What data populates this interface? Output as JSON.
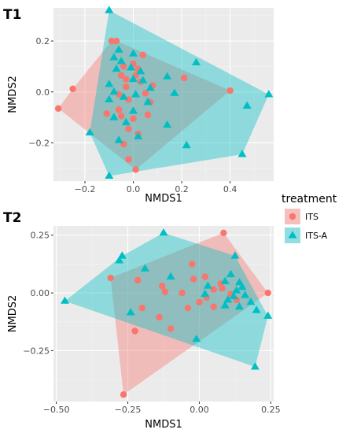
{
  "colors": {
    "ITS": "#F8766D",
    "ITS-A": "#00BFC4",
    "panel_bg": "#EBEBEB",
    "grid_major": "#FFFFFF",
    "grid_minor": "#F4F4F4"
  },
  "legend": {
    "title": "treatment",
    "entries": [
      {
        "label": "ITS",
        "shape": "circle",
        "color": "#F8766D"
      },
      {
        "label": "ITS-A",
        "shape": "triangle",
        "color": "#00BFC4"
      }
    ]
  },
  "chart_data": [
    {
      "type": "scatter",
      "tag": "T1",
      "xlabel": "NMDS1",
      "ylabel": "NMDS2",
      "xlim": [
        -0.33,
        0.58
      ],
      "ylim": [
        -0.35,
        0.33
      ],
      "xticks": [
        -0.2,
        0.0,
        0.2,
        0.4
      ],
      "xtick_labels": [
        "−0.2",
        "0.0",
        "0.2",
        "0.4"
      ],
      "yticks": [
        -0.2,
        0.0,
        0.2
      ],
      "ytick_labels": [
        "−0.2",
        "0.0",
        "0.2"
      ],
      "hull_fill": true,
      "series": [
        {
          "name": "ITS",
          "marker": "circle",
          "points": [
            [
              -0.31,
              -0.065
            ],
            [
              -0.25,
              0.012
            ],
            [
              -0.09,
              0.2
            ],
            [
              -0.07,
              0.2
            ],
            [
              0.01,
              -0.305
            ],
            [
              0.4,
              0.005
            ],
            [
              0.04,
              0.145
            ],
            [
              0.0,
              0.11
            ],
            [
              -0.04,
              0.1
            ],
            [
              0.02,
              0.09
            ],
            [
              -0.05,
              0.065
            ],
            [
              0.03,
              0.04
            ],
            [
              0.08,
              0.025
            ],
            [
              -0.03,
              0.02
            ],
            [
              0.21,
              0.055
            ],
            [
              -0.06,
              -0.01
            ],
            [
              0.05,
              -0.005
            ],
            [
              -0.02,
              -0.03
            ],
            [
              0.07,
              -0.04
            ],
            [
              -0.11,
              -0.085
            ],
            [
              -0.05,
              -0.095
            ],
            [
              0.0,
              -0.105
            ],
            [
              -0.02,
              -0.145
            ],
            [
              0.02,
              -0.165
            ],
            [
              -0.04,
              -0.205
            ],
            [
              -0.02,
              -0.265
            ],
            [
              -0.06,
              -0.07
            ],
            [
              0.06,
              -0.09
            ],
            [
              -0.03,
              0.05
            ],
            [
              0.01,
              0.065
            ]
          ]
        },
        {
          "name": "ITS-A",
          "marker": "triangle",
          "points": [
            [
              -0.1,
              0.32
            ],
            [
              -0.06,
              0.165
            ],
            [
              0.0,
              0.15
            ],
            [
              0.26,
              0.115
            ],
            [
              -0.08,
              0.135
            ],
            [
              -0.05,
              0.12
            ],
            [
              -0.01,
              0.095
            ],
            [
              0.03,
              0.08
            ],
            [
              0.14,
              0.06
            ],
            [
              -0.07,
              0.09
            ],
            [
              0.0,
              0.05
            ],
            [
              0.04,
              0.045
            ],
            [
              -0.1,
              0.03
            ],
            [
              -0.08,
              0.0
            ],
            [
              0.07,
              0.015
            ],
            [
              -0.1,
              -0.03
            ],
            [
              -0.04,
              -0.02
            ],
            [
              0.01,
              -0.01
            ],
            [
              0.17,
              -0.005
            ],
            [
              0.56,
              -0.01
            ],
            [
              0.47,
              -0.055
            ],
            [
              0.0,
              -0.075
            ],
            [
              -0.08,
              -0.1
            ],
            [
              -0.03,
              -0.12
            ],
            [
              0.14,
              -0.13
            ],
            [
              -0.18,
              -0.16
            ],
            [
              0.02,
              -0.175
            ],
            [
              -0.06,
              -0.19
            ],
            [
              0.22,
              -0.21
            ],
            [
              0.45,
              -0.245
            ],
            [
              -0.1,
              -0.33
            ],
            [
              0.06,
              -0.04
            ]
          ]
        }
      ]
    },
    {
      "type": "scatter",
      "tag": "T2",
      "xlabel": "NMDS1",
      "ylabel": "NMDS2",
      "xlim": [
        -0.51,
        0.26
      ],
      "ylim": [
        -0.47,
        0.29
      ],
      "xticks": [
        -0.5,
        -0.25,
        0.0,
        0.25
      ],
      "xtick_labels": [
        "−0.50",
        "−0.25",
        "0.00",
        "0.25"
      ],
      "yticks": [
        -0.25,
        0.0,
        0.25
      ],
      "ytick_labels": [
        "−0.25",
        "0.00",
        "0.25"
      ],
      "hull_fill": true,
      "series": [
        {
          "name": "ITS",
          "marker": "circle",
          "points": [
            [
              0.085,
              0.26
            ],
            [
              0.24,
              0.0
            ],
            [
              -0.265,
              -0.44
            ],
            [
              -0.225,
              -0.165
            ],
            [
              -0.31,
              0.065
            ],
            [
              -0.025,
              0.125
            ],
            [
              -0.215,
              0.055
            ],
            [
              -0.02,
              0.06
            ],
            [
              0.02,
              0.07
            ],
            [
              0.075,
              0.04
            ],
            [
              -0.13,
              0.03
            ],
            [
              0.08,
              0.02
            ],
            [
              0.05,
              0.015
            ],
            [
              -0.2,
              -0.065
            ],
            [
              0.025,
              -0.02
            ],
            [
              0.11,
              -0.005
            ],
            [
              0.0,
              -0.04
            ],
            [
              -0.12,
              0.005
            ],
            [
              -0.04,
              -0.065
            ],
            [
              -0.14,
              -0.105
            ],
            [
              -0.1,
              -0.155
            ],
            [
              0.05,
              -0.06
            ],
            [
              0.13,
              -0.03
            ],
            [
              -0.06,
              -0.0
            ]
          ]
        },
        {
          "name": "ITS-A",
          "marker": "triangle",
          "points": [
            [
              -0.47,
              -0.035
            ],
            [
              -0.125,
              0.26
            ],
            [
              0.125,
              0.16
            ],
            [
              -0.28,
              0.14
            ],
            [
              -0.27,
              0.16
            ],
            [
              -0.19,
              0.105
            ],
            [
              -0.1,
              0.07
            ],
            [
              0.11,
              0.08
            ],
            [
              0.09,
              0.05
            ],
            [
              0.14,
              0.045
            ],
            [
              0.15,
              0.025
            ],
            [
              0.02,
              -0.005
            ],
            [
              0.12,
              -0.015
            ],
            [
              0.1,
              -0.03
            ],
            [
              0.16,
              -0.01
            ],
            [
              0.18,
              -0.04
            ],
            [
              0.14,
              -0.06
            ],
            [
              0.09,
              -0.055
            ],
            [
              0.2,
              -0.075
            ],
            [
              0.24,
              -0.1
            ],
            [
              -0.24,
              -0.085
            ],
            [
              -0.01,
              -0.2
            ],
            [
              0.195,
              -0.32
            ],
            [
              0.13,
              0.01
            ],
            [
              0.03,
              0.03
            ]
          ]
        }
      ]
    }
  ]
}
